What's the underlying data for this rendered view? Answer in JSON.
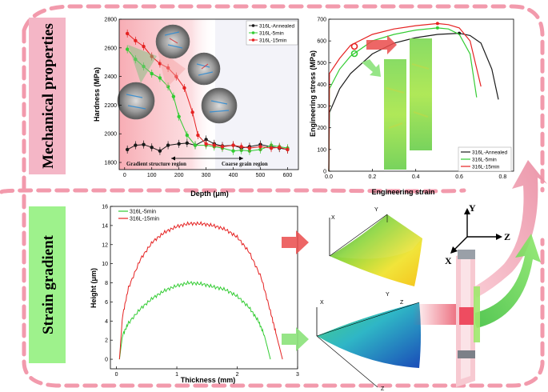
{
  "side_labels": {
    "top": "Mechanical properties",
    "bottom": "Strain gradient"
  },
  "colors": {
    "annealed": "#1a1a1a",
    "min5": "#33cc33",
    "min15": "#e52222",
    "pink_label": "#f4b6c6",
    "green_label": "#9ef28c",
    "dash_border": "#f29aac"
  },
  "panel_a": {
    "ylabel": "Hardness (MPa)",
    "xlabel": "Depth (μm)",
    "legend": [
      "316L-Annealed",
      "316L-5min",
      "316L-15min"
    ],
    "annotation_left": "Gradient structure region",
    "annotation_right": "Coarse grain region",
    "x_ticks": [
      "0",
      "100",
      "200",
      "300",
      "400",
      "500",
      "600"
    ],
    "y_ticks": [
      "1800",
      "2000",
      "2200",
      "2400",
      "2600",
      "2800"
    ]
  },
  "panel_b": {
    "ylabel": "Engineering stress (MPa)",
    "xlabel": "Engineering strain",
    "legend": [
      "316L-Annealed",
      "316L-5min",
      "316L-15min"
    ],
    "x_ticks": [
      "0.0",
      "0.2",
      "0.4",
      "0.6",
      "0.8"
    ],
    "y_ticks": [
      "0",
      "100",
      "200",
      "300",
      "400",
      "500",
      "600",
      "700"
    ]
  },
  "panel_c": {
    "ylabel": "Height (μm)",
    "xlabel": "Thickness (mm)",
    "legend": [
      "316L-5min",
      "316L-15min"
    ],
    "x_ticks": [
      "0",
      "1",
      "2",
      "3"
    ],
    "y_ticks": [
      "0",
      "2",
      "4",
      "6",
      "8",
      "10",
      "12",
      "14",
      "16"
    ]
  },
  "axes3d": {
    "x": "X",
    "y": "Y",
    "z": "Z"
  },
  "chart_data": [
    {
      "type": "line",
      "ylabel": "Hardness (MPa)",
      "xlabel": "Depth (μm)",
      "xlim": [
        -20,
        640
      ],
      "ylim": [
        1750,
        2800
      ],
      "legend_position": "top-right",
      "series": [
        {
          "name": "316L-Annealed",
          "x": [
            10,
            40,
            70,
            100,
            130,
            160,
            200,
            230,
            260,
            300,
            330,
            360,
            400,
            430,
            460,
            500,
            540,
            570,
            600
          ],
          "y": [
            1890,
            1920,
            1925,
            1905,
            1880,
            1920,
            1930,
            1935,
            1920,
            1960,
            1930,
            1915,
            1920,
            1900,
            1910,
            1925,
            1910,
            1900,
            1890
          ]
        },
        {
          "name": "316L-5min",
          "x": [
            10,
            40,
            70,
            100,
            130,
            160,
            180,
            200,
            230,
            260,
            300,
            330,
            360,
            400,
            430,
            460,
            500,
            540,
            570,
            600
          ],
          "y": [
            2590,
            2520,
            2470,
            2420,
            2390,
            2330,
            2260,
            2120,
            1990,
            1920,
            1920,
            1910,
            1900,
            1880,
            1885,
            1880,
            1890,
            1920,
            1910,
            1900
          ]
        },
        {
          "name": "316L-15min",
          "x": [
            10,
            40,
            70,
            100,
            130,
            160,
            190,
            220,
            250,
            270,
            300,
            330,
            360,
            400,
            430,
            460,
            500,
            540,
            570,
            600
          ],
          "y": [
            2700,
            2650,
            2610,
            2540,
            2490,
            2460,
            2400,
            2320,
            2150,
            1990,
            1930,
            1920,
            1910,
            1920,
            1910,
            1900,
            1910,
            1900,
            1905,
            1890
          ]
        }
      ]
    },
    {
      "type": "line",
      "ylabel": "Engineering stress (MPa)",
      "xlabel": "Engineering strain",
      "xlim": [
        0,
        0.85
      ],
      "ylim": [
        0,
        700
      ],
      "legend_position": "bottom-right",
      "series": [
        {
          "name": "316L-Annealed",
          "x": [
            0,
            0.003,
            0.05,
            0.1,
            0.2,
            0.3,
            0.4,
            0.5,
            0.6,
            0.65,
            0.7,
            0.75,
            0.78
          ],
          "y": [
            0,
            270,
            380,
            450,
            540,
            590,
            615,
            630,
            635,
            625,
            590,
            470,
            330
          ]
        },
        {
          "name": "316L-5min",
          "x": [
            0,
            0.003,
            0.05,
            0.1,
            0.2,
            0.3,
            0.4,
            0.5,
            0.55,
            0.6,
            0.65,
            0.68
          ],
          "y": [
            0,
            380,
            470,
            530,
            600,
            630,
            650,
            660,
            655,
            630,
            540,
            340
          ]
        },
        {
          "name": "316L-15min",
          "x": [
            0,
            0.003,
            0.05,
            0.1,
            0.2,
            0.3,
            0.4,
            0.5,
            0.55,
            0.6,
            0.65,
            0.7
          ],
          "y": [
            0,
            450,
            520,
            580,
            630,
            655,
            670,
            680,
            675,
            660,
            600,
            390
          ]
        }
      ]
    },
    {
      "type": "line",
      "ylabel": "Height (μm)",
      "xlabel": "Thickness (mm)",
      "xlim": [
        -0.1,
        3
      ],
      "ylim": [
        -1,
        16
      ],
      "legend_position": "top-left",
      "series": [
        {
          "name": "316L-5min",
          "x": [
            0.05,
            0.1,
            0.2,
            0.4,
            0.6,
            0.8,
            1.0,
            1.2,
            1.4,
            1.6,
            1.8,
            2.0,
            2.2,
            2.35,
            2.45,
            2.55
          ],
          "y": [
            0,
            2.5,
            3.8,
            5.3,
            6.4,
            7.2,
            7.7,
            8.0,
            7.9,
            7.6,
            7.3,
            6.6,
            5.4,
            4.0,
            2.5,
            0
          ]
        },
        {
          "name": "316L-15min",
          "x": [
            0.05,
            0.1,
            0.2,
            0.4,
            0.6,
            0.8,
            1.0,
            1.2,
            1.4,
            1.6,
            1.8,
            2.0,
            2.2,
            2.4,
            2.55,
            2.65,
            2.75
          ],
          "y": [
            0,
            4.5,
            7.5,
            10.5,
            12.3,
            13.3,
            13.9,
            14.2,
            14.2,
            14.0,
            13.6,
            12.8,
            11.2,
            8.5,
            5.0,
            2.5,
            0
          ]
        }
      ]
    }
  ]
}
